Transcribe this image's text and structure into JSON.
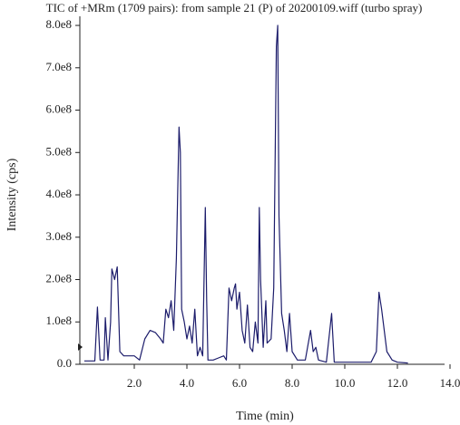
{
  "chart_data": {
    "type": "line",
    "title": "TIC of +MRm (1709 pairs): from sample 21 (P) of 20200109.wiff (turbo spray)",
    "x_label": "Time (min)",
    "y_label": "Intensity (cps)",
    "xlim": [
      0,
      14
    ],
    "ylim": [
      0,
      820000000.0
    ],
    "xticks": [
      {
        "value": 2,
        "label": "2.0"
      },
      {
        "value": 4,
        "label": "4.0"
      },
      {
        "value": 6,
        "label": "6.0"
      },
      {
        "value": 8,
        "label": "8.0"
      },
      {
        "value": 10,
        "label": "10.0"
      },
      {
        "value": 12,
        "label": "12.0"
      },
      {
        "value": 14,
        "label": "14.0"
      }
    ],
    "yticks": [
      {
        "value": 0,
        "label": "0.0"
      },
      {
        "value": 100000000.0,
        "label": "1.0e8"
      },
      {
        "value": 200000000.0,
        "label": "2.0e8"
      },
      {
        "value": 300000000.0,
        "label": "3.0e8"
      },
      {
        "value": 400000000.0,
        "label": "4.0e8"
      },
      {
        "value": 500000000.0,
        "label": "5.0e8"
      },
      {
        "value": 600000000.0,
        "label": "6.0e8"
      },
      {
        "value": 700000000.0,
        "label": "7.0e8"
      },
      {
        "value": 800000000.0,
        "label": "8.0e8"
      }
    ],
    "series": [
      {
        "color": "#1c1c6b",
        "x": [
          0.1,
          0.5,
          0.6,
          0.7,
          0.85,
          0.9,
          1.0,
          1.1,
          1.15,
          1.25,
          1.35,
          1.45,
          1.6,
          2.0,
          2.2,
          2.4,
          2.6,
          2.8,
          3.0,
          3.1,
          3.2,
          3.3,
          3.4,
          3.5,
          3.6,
          3.7,
          3.75,
          3.8,
          3.9,
          4.0,
          4.1,
          4.2,
          4.3,
          4.4,
          4.5,
          4.6,
          4.7,
          4.75,
          4.8,
          5.0,
          5.2,
          5.4,
          5.5,
          5.6,
          5.7,
          5.8,
          5.85,
          5.9,
          6.0,
          6.1,
          6.2,
          6.3,
          6.4,
          6.5,
          6.6,
          6.7,
          6.75,
          6.8,
          6.9,
          7.0,
          7.05,
          7.2,
          7.3,
          7.4,
          7.45,
          7.5,
          7.6,
          7.7,
          7.8,
          7.9,
          8.0,
          8.2,
          8.5,
          8.7,
          8.8,
          8.9,
          9.0,
          9.3,
          9.5,
          9.6,
          10.0,
          10.5,
          11.0,
          11.2,
          11.3,
          11.4,
          11.6,
          11.8,
          12.0,
          12.4
        ],
        "values": [
          8000000.0,
          8000000.0,
          135000000.0,
          10000000.0,
          10000000.0,
          110000000.0,
          10000000.0,
          100000000.0,
          225000000.0,
          200000000.0,
          230000000.0,
          30000000.0,
          20000000.0,
          20000000.0,
          10000000.0,
          60000000.0,
          80000000.0,
          75000000.0,
          60000000.0,
          50000000.0,
          130000000.0,
          110000000.0,
          150000000.0,
          80000000.0,
          250000000.0,
          560000000.0,
          500000000.0,
          130000000.0,
          100000000.0,
          60000000.0,
          90000000.0,
          50000000.0,
          130000000.0,
          20000000.0,
          40000000.0,
          20000000.0,
          370000000.0,
          150000000.0,
          10000000.0,
          10000000.0,
          15000000.0,
          20000000.0,
          10000000.0,
          180000000.0,
          150000000.0,
          180000000.0,
          190000000.0,
          130000000.0,
          170000000.0,
          80000000.0,
          50000000.0,
          140000000.0,
          40000000.0,
          30000000.0,
          100000000.0,
          50000000.0,
          370000000.0,
          200000000.0,
          40000000.0,
          150000000.0,
          50000000.0,
          60000000.0,
          180000000.0,
          750000000.0,
          800000000.0,
          350000000.0,
          120000000.0,
          80000000.0,
          30000000.0,
          120000000.0,
          30000000.0,
          10000000.0,
          10000000.0,
          80000000.0,
          30000000.0,
          40000000.0,
          10000000.0,
          5000000.0,
          120000000.0,
          5000000.0,
          5000000.0,
          5000000.0,
          5000000.0,
          30000000.0,
          170000000.0,
          130000000.0,
          30000000.0,
          10000000.0,
          5000000.0,
          3000000.0
        ]
      }
    ]
  }
}
